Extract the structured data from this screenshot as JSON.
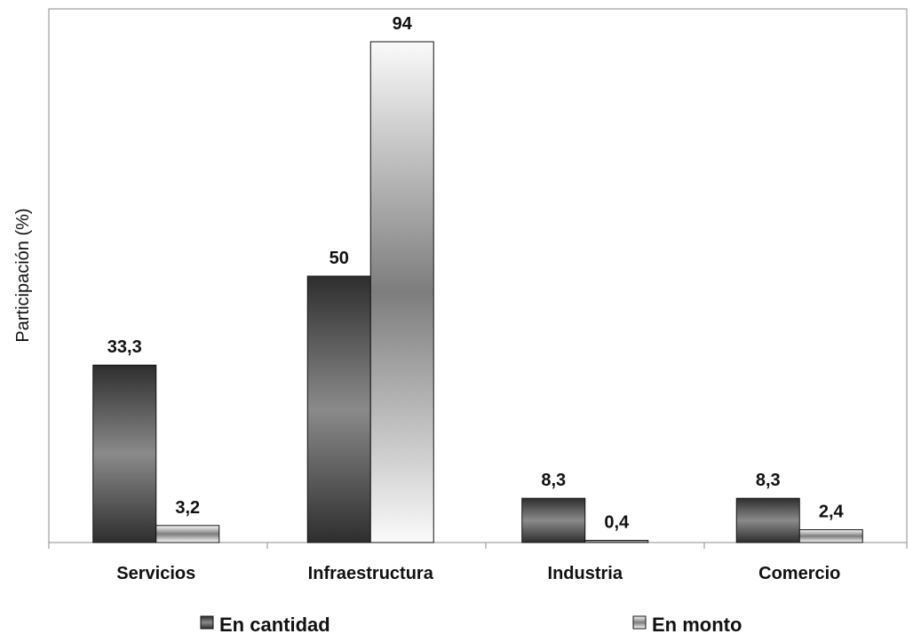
{
  "chart_data": {
    "type": "bar",
    "title": "",
    "xlabel": "",
    "ylabel": "Participación (%)",
    "ylim": [
      0,
      94
    ],
    "grid": false,
    "legend_position": "bottom",
    "categories": [
      "Servicios",
      "Infraestructura",
      "Industria",
      "Comercio"
    ],
    "series": [
      {
        "name": "En cantidad",
        "values": [
          33.3,
          50,
          8.3,
          8.3
        ],
        "labels": [
          "33,3",
          "50",
          "8,3",
          "8,3"
        ]
      },
      {
        "name": "En monto",
        "values": [
          3.2,
          94,
          0.4,
          2.4
        ],
        "labels": [
          "3,2",
          "94",
          "0,4",
          "2,4"
        ]
      }
    ]
  }
}
